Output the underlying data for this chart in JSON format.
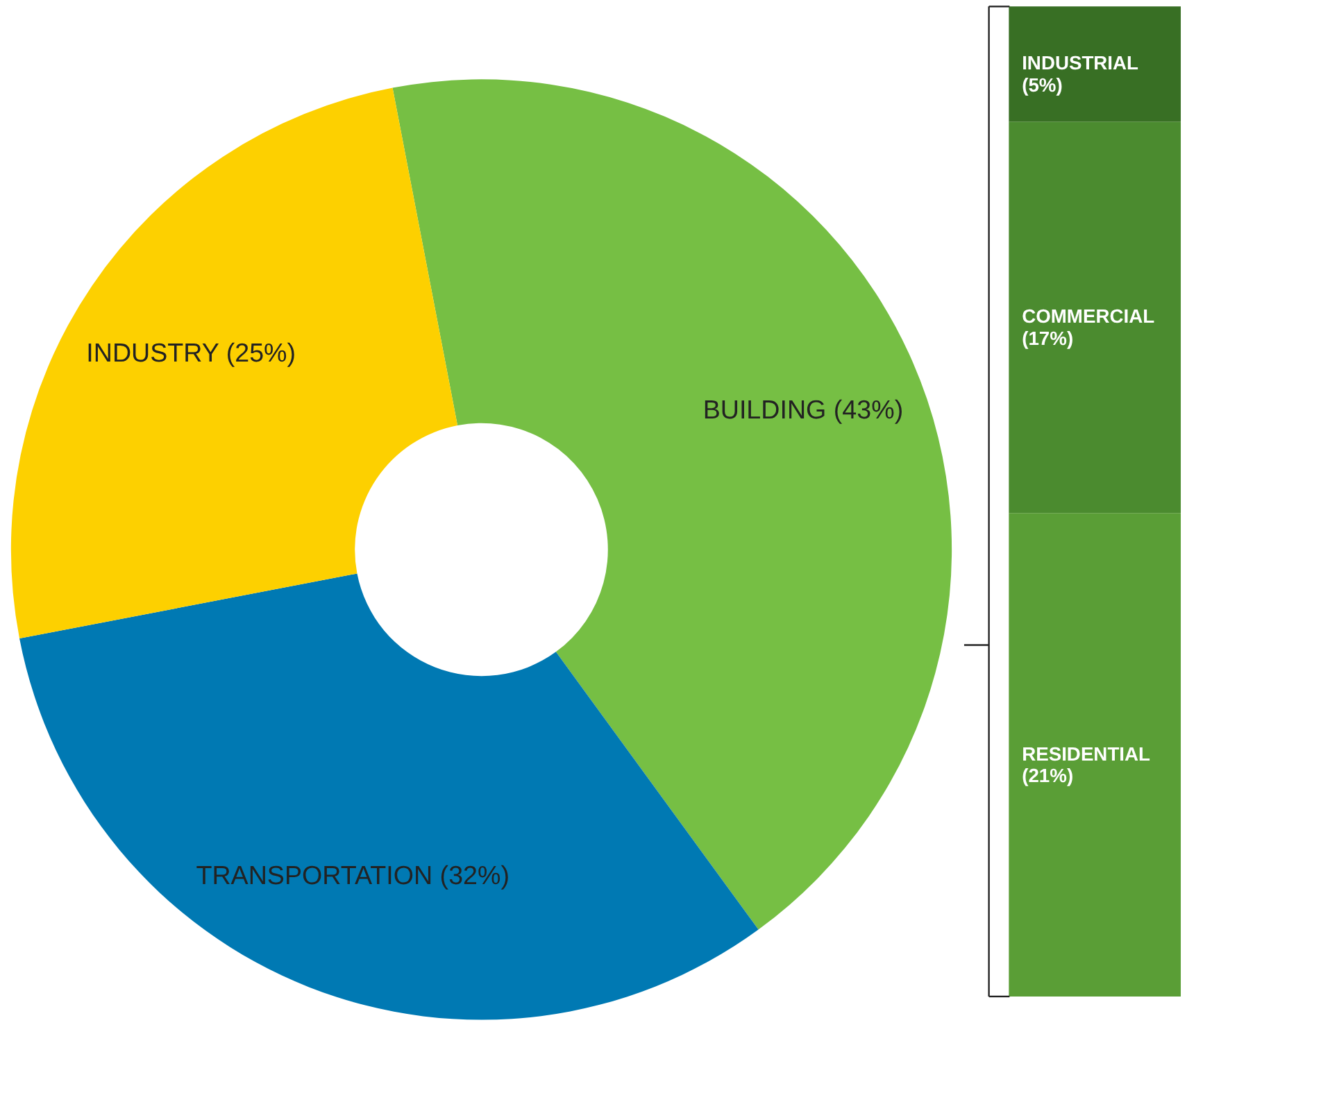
{
  "chart_data": [
    {
      "type": "donut",
      "categories": [
        "BUILDING",
        "TRANSPORTATION",
        "INDUSTRY"
      ],
      "values": [
        43,
        32,
        25
      ],
      "colors": [
        "#76bf44",
        "#0079b3",
        "#fdd000"
      ],
      "value_labels": [
        "(43%)",
        "(32%)",
        "(25%)"
      ],
      "legend": false
    },
    {
      "type": "bar",
      "stacked": true,
      "categories": [
        null
      ],
      "tick_labels": false,
      "legend": false,
      "series": [
        {
          "name": "RESIDENTIAL",
          "color": "#5a9e36",
          "values": [
            21
          ],
          "value_labels": [
            "(21%)"
          ]
        },
        {
          "name": "COMMERCIAL",
          "color": "#4b8b2f",
          "values": [
            17
          ],
          "value_labels": [
            "(17%)"
          ]
        },
        {
          "name": "INDUSTRIAL",
          "color": "#386f24",
          "values": [
            5
          ],
          "value_labels": [
            "(5%)"
          ]
        }
      ]
    }
  ]
}
